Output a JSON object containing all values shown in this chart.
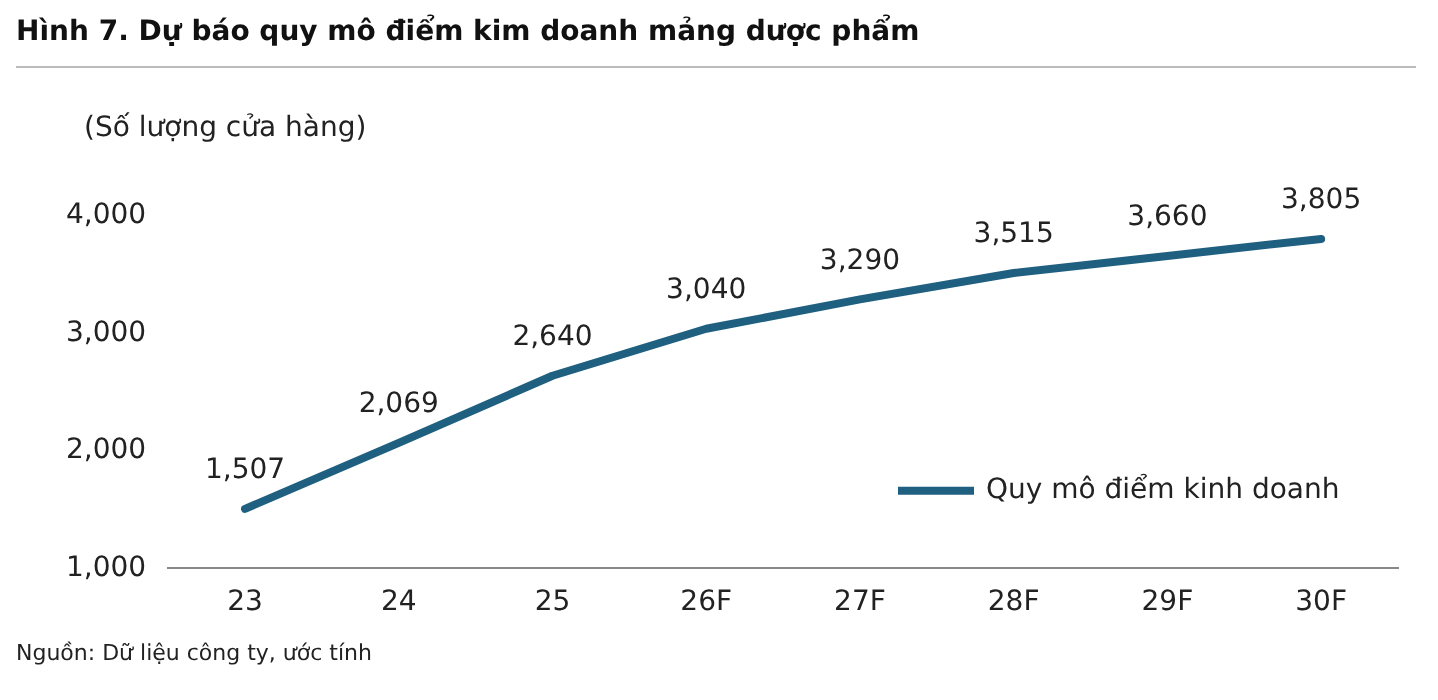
{
  "chart_data": {
    "type": "line",
    "title": "Hình 7. Dự báo quy mô điểm kim doanh mảng dược phẩm",
    "ylabel": "(Số lượng cửa hàng)",
    "categories": [
      "23",
      "24",
      "25",
      "26F",
      "27F",
      "28F",
      "29F",
      "30F"
    ],
    "series": [
      {
        "name": "Quy mô điểm kinh doanh",
        "color": "#1f5f80",
        "values": [
          1507,
          2069,
          2640,
          3040,
          3290,
          3515,
          3660,
          3805
        ],
        "value_labels": [
          "1,507",
          "2,069",
          "2,640",
          "3,040",
          "3,290",
          "3,515",
          "3,660",
          "3,805"
        ]
      }
    ],
    "ylim": [
      1000,
      4000
    ],
    "yticks": [
      {
        "value": 1000,
        "label": "1,000"
      },
      {
        "value": 2000,
        "label": "2,000"
      },
      {
        "value": 3000,
        "label": "3,000"
      },
      {
        "value": 4000,
        "label": "4,000"
      }
    ],
    "grid": false,
    "legend": "bottom right",
    "marker": "none",
    "line_style": "solid",
    "annotations": [
      "Nguồn: Dữ liệu công ty, ước tính"
    ]
  }
}
